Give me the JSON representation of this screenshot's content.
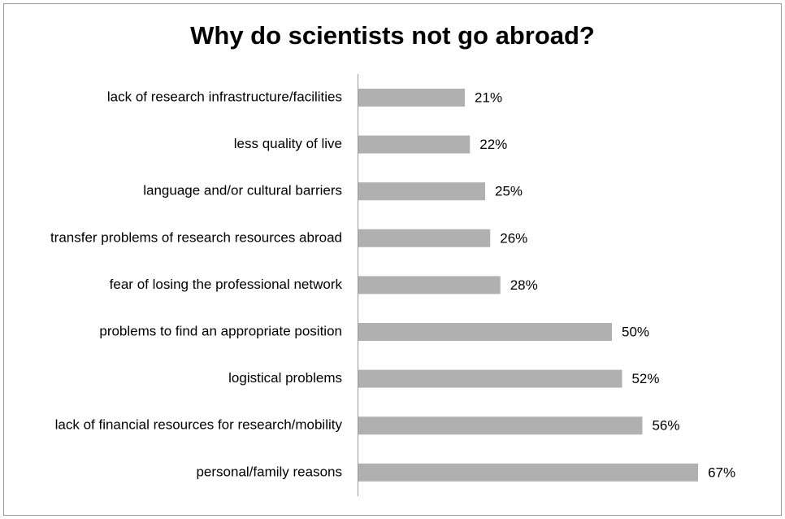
{
  "chart_data": {
    "type": "bar",
    "orientation": "horizontal",
    "title": "Why do scientists not go abroad?",
    "categories": [
      "lack of research infrastructure/facilities",
      "less quality of live",
      "language and/or cultural barriers",
      "transfer problems of research resources abroad",
      "fear of losing the professional network",
      "problems to find an appropriate position",
      "logistical problems",
      "lack of financial resources for research/mobility",
      "personal/family reasons"
    ],
    "values": [
      21,
      22,
      25,
      26,
      28,
      50,
      52,
      56,
      67
    ],
    "value_labels": [
      "21%",
      "22%",
      "25%",
      "26%",
      "28%",
      "50%",
      "52%",
      "56%",
      "67%"
    ],
    "color": "#b0b0b0"
  }
}
